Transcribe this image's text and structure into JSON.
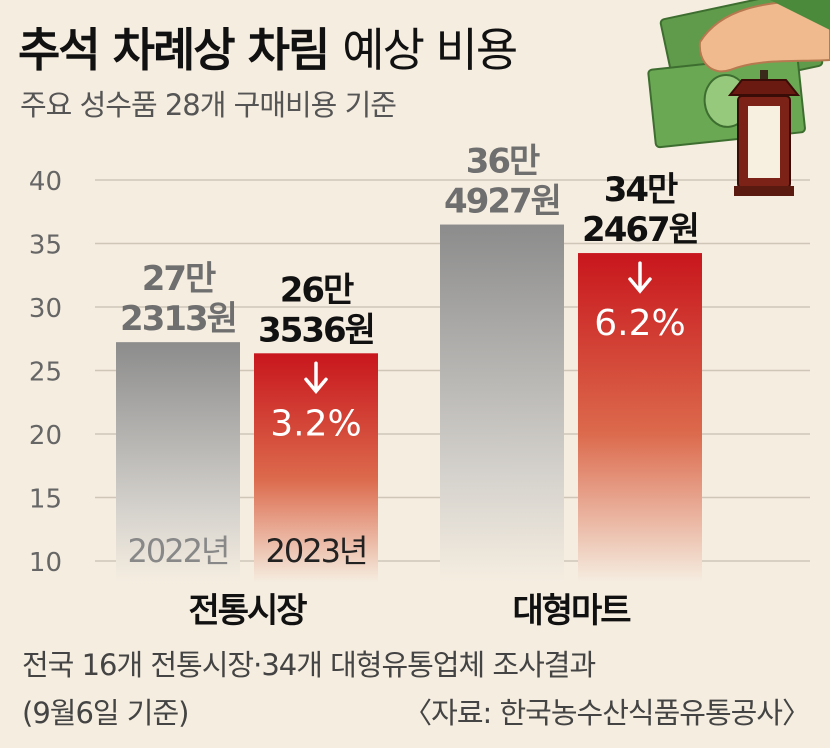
{
  "title_bold": "추석 차례상 차림",
  "title_light": "예상 비용",
  "subtitle": "주요 성수품 28개 구매비용 기준",
  "footnote_line1": "전국 16개 전통시장·34개 대형유통업체 조사결과",
  "footnote_line2": "(9월6일 기준)",
  "source": "〈자료: 한국농수산식품유통공사〉",
  "colors": {
    "background": "#f5ede0",
    "bar_2022_top": "#8f8f8f",
    "bar_2023_top": "#c8161d",
    "change_text": "#ffffff"
  },
  "icons": [
    "money-hand-icon",
    "lantern-icon"
  ],
  "chart_data": {
    "type": "bar",
    "categories": [
      "전통시장",
      "대형마트"
    ],
    "series": [
      {
        "name": "2022년",
        "values": [
          27.2313,
          36.4927
        ],
        "value_labels": [
          [
            "27만",
            "2313원"
          ],
          [
            "36만",
            "4927원"
          ]
        ]
      },
      {
        "name": "2023년",
        "values": [
          26.3536,
          34.2467
        ],
        "value_labels": [
          [
            "26만",
            "3536원"
          ],
          [
            "34만",
            "2467원"
          ]
        ],
        "changes": [
          "3.2%",
          "6.2%"
        ]
      }
    ],
    "yticks": [
      10,
      15,
      20,
      25,
      30,
      35,
      40
    ],
    "ylim": [
      8,
      40
    ],
    "grid": true,
    "legend": "inside-bars-bottom"
  }
}
